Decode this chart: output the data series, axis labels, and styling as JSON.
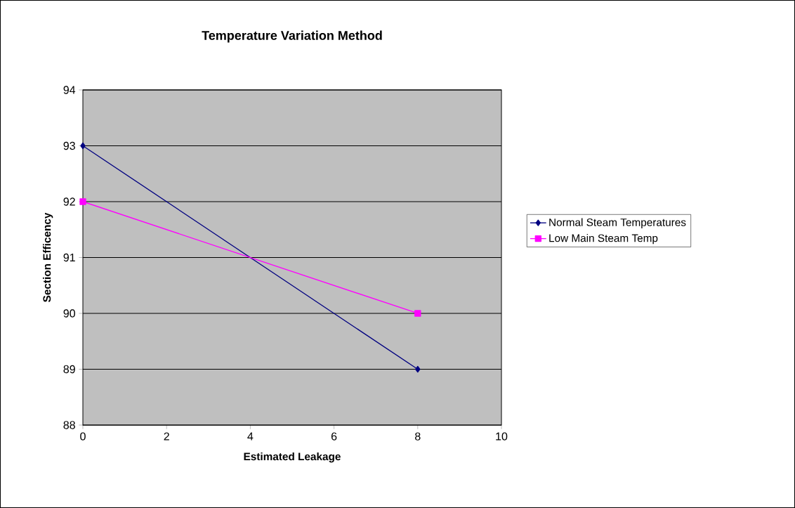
{
  "chart_data": {
    "type": "line",
    "title": "Temperature Variation Method",
    "xlabel": "Estimated Leakage",
    "ylabel": "Section Efficency",
    "x": [
      0,
      8
    ],
    "series": [
      {
        "name": "Normal Steam Temperatures",
        "color": "#000080",
        "values": [
          93,
          89
        ],
        "marker": "diamond"
      },
      {
        "name": "Low Main Steam Temp",
        "color": "#ff00ff",
        "values": [
          92,
          90
        ],
        "marker": "square"
      }
    ],
    "xlim": [
      0,
      10
    ],
    "xticks": [
      0,
      2,
      4,
      6,
      8,
      10
    ],
    "ylim": [
      88,
      94
    ],
    "yticks": [
      88,
      89,
      90,
      91,
      92,
      93,
      94
    ],
    "grid": "y",
    "legend": "right",
    "line_style": "solid"
  }
}
